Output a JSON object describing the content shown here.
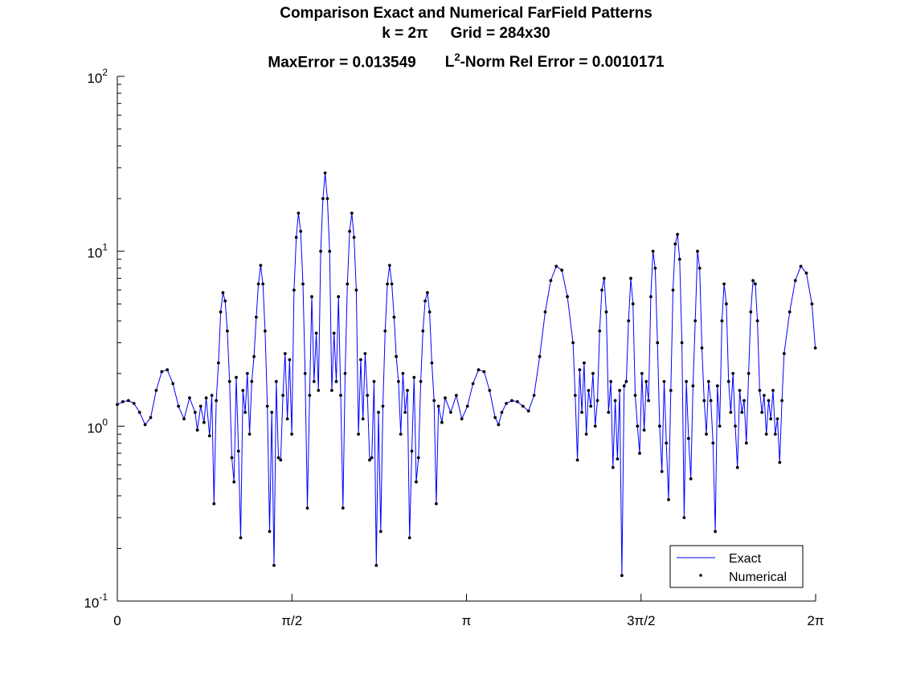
{
  "chart_data": {
    "type": "line",
    "title": "Comparison Exact and Numerical FarField Patterns",
    "subtitle_k": "k = 2π",
    "subtitle_grid": "Grid = 284x30",
    "maxerror_text": "MaxError = 0.013549",
    "l2_prefix": "L",
    "l2_sup": "2",
    "l2_suffix": "-Norm Rel Error = 0.0010171",
    "xlabel": "",
    "ylabel": "",
    "xlim": [
      0,
      6.2832
    ],
    "ylim": [
      0.1,
      100
    ],
    "yscale": "log",
    "grid": false,
    "legend_position": "bottom-right",
    "x_ticks": [
      {
        "value": 0,
        "label": "0"
      },
      {
        "value": 1.5708,
        "label": "π/2"
      },
      {
        "value": 3.1416,
        "label": "π"
      },
      {
        "value": 4.7124,
        "label": "3π/2"
      },
      {
        "value": 6.2832,
        "label": "2π"
      }
    ],
    "y_ticks": [
      {
        "value": 0.1,
        "base": "10",
        "exp": "-1"
      },
      {
        "value": 1,
        "base": "10",
        "exp": "0"
      },
      {
        "value": 10,
        "base": "10",
        "exp": "1"
      },
      {
        "value": 100,
        "base": "10",
        "exp": "2"
      }
    ],
    "series": [
      {
        "name": "Exact",
        "style": "line",
        "color": "#0000ff"
      },
      {
        "name": "Numerical",
        "style": "dots",
        "color": "#000000"
      }
    ],
    "points": [
      [
        0.0,
        1.33
      ],
      [
        0.05,
        1.38
      ],
      [
        0.1,
        1.4
      ],
      [
        0.15,
        1.35
      ],
      [
        0.2,
        1.2
      ],
      [
        0.25,
        1.02
      ],
      [
        0.3,
        1.12
      ],
      [
        0.35,
        1.6
      ],
      [
        0.4,
        2.05
      ],
      [
        0.45,
        2.1
      ],
      [
        0.5,
        1.75
      ],
      [
        0.55,
        1.3
      ],
      [
        0.6,
        1.1
      ],
      [
        0.65,
        1.45
      ],
      [
        0.7,
        1.2
      ],
      [
        0.72,
        0.95
      ],
      [
        0.75,
        1.3
      ],
      [
        0.78,
        1.05
      ],
      [
        0.8,
        1.45
      ],
      [
        0.83,
        0.88
      ],
      [
        0.85,
        1.5
      ],
      [
        0.87,
        0.36
      ],
      [
        0.89,
        1.4
      ],
      [
        0.91,
        2.3
      ],
      [
        0.93,
        4.5
      ],
      [
        0.95,
        5.8
      ],
      [
        0.97,
        5.2
      ],
      [
        0.99,
        3.5
      ],
      [
        1.01,
        1.8
      ],
      [
        1.03,
        0.66
      ],
      [
        1.05,
        0.48
      ],
      [
        1.07,
        1.9
      ],
      [
        1.09,
        0.72
      ],
      [
        1.11,
        0.23
      ],
      [
        1.13,
        1.6
      ],
      [
        1.15,
        1.2
      ],
      [
        1.17,
        2.0
      ],
      [
        1.19,
        0.9
      ],
      [
        1.21,
        1.8
      ],
      [
        1.23,
        2.5
      ],
      [
        1.25,
        4.2
      ],
      [
        1.27,
        6.5
      ],
      [
        1.29,
        8.3
      ],
      [
        1.31,
        6.5
      ],
      [
        1.33,
        3.5
      ],
      [
        1.35,
        1.3
      ],
      [
        1.37,
        0.25
      ],
      [
        1.39,
        1.2
      ],
      [
        1.41,
        0.16
      ],
      [
        1.43,
        1.8
      ],
      [
        1.45,
        0.66
      ],
      [
        1.47,
        0.64
      ],
      [
        1.49,
        1.5
      ],
      [
        1.51,
        2.6
      ],
      [
        1.53,
        1.1
      ],
      [
        1.55,
        2.4
      ],
      [
        1.57,
        0.9
      ],
      [
        1.59,
        6.0
      ],
      [
        1.61,
        12.0
      ],
      [
        1.63,
        16.5
      ],
      [
        1.65,
        13.0
      ],
      [
        1.67,
        6.5
      ],
      [
        1.69,
        2.0
      ],
      [
        1.71,
        0.34
      ],
      [
        1.73,
        1.5
      ],
      [
        1.75,
        5.5
      ],
      [
        1.77,
        1.8
      ],
      [
        1.79,
        3.4
      ],
      [
        1.81,
        1.6
      ],
      [
        1.83,
        10.0
      ],
      [
        1.85,
        20.0
      ],
      [
        1.87,
        28.0
      ],
      [
        1.89,
        20.0
      ],
      [
        1.91,
        10.0
      ],
      [
        1.93,
        1.6
      ],
      [
        1.95,
        3.4
      ],
      [
        1.97,
        1.8
      ],
      [
        1.99,
        5.5
      ],
      [
        2.01,
        1.5
      ],
      [
        2.03,
        0.34
      ],
      [
        2.05,
        2.0
      ],
      [
        2.07,
        6.5
      ],
      [
        2.09,
        13.0
      ],
      [
        2.11,
        16.5
      ],
      [
        2.13,
        12.0
      ],
      [
        2.15,
        6.0
      ],
      [
        2.17,
        0.9
      ],
      [
        2.19,
        2.4
      ],
      [
        2.21,
        1.1
      ],
      [
        2.23,
        2.6
      ],
      [
        2.25,
        1.5
      ],
      [
        2.27,
        0.64
      ],
      [
        2.29,
        0.66
      ],
      [
        2.31,
        1.8
      ],
      [
        2.33,
        0.16
      ],
      [
        2.35,
        1.2
      ],
      [
        2.37,
        0.25
      ],
      [
        2.39,
        1.3
      ],
      [
        2.41,
        3.5
      ],
      [
        2.43,
        6.5
      ],
      [
        2.45,
        8.3
      ],
      [
        2.47,
        6.5
      ],
      [
        2.49,
        4.2
      ],
      [
        2.51,
        2.5
      ],
      [
        2.53,
        1.8
      ],
      [
        2.55,
        0.9
      ],
      [
        2.57,
        2.0
      ],
      [
        2.59,
        1.2
      ],
      [
        2.61,
        1.6
      ],
      [
        2.63,
        0.23
      ],
      [
        2.65,
        0.72
      ],
      [
        2.67,
        1.9
      ],
      [
        2.69,
        0.48
      ],
      [
        2.71,
        0.66
      ],
      [
        2.73,
        1.8
      ],
      [
        2.75,
        3.5
      ],
      [
        2.77,
        5.2
      ],
      [
        2.79,
        5.8
      ],
      [
        2.81,
        4.5
      ],
      [
        2.83,
        2.3
      ],
      [
        2.85,
        1.4
      ],
      [
        2.87,
        0.36
      ],
      [
        2.89,
        1.3
      ],
      [
        2.92,
        1.05
      ],
      [
        2.95,
        1.45
      ],
      [
        3.0,
        1.2
      ],
      [
        3.05,
        1.5
      ],
      [
        3.1,
        1.1
      ],
      [
        3.15,
        1.3
      ],
      [
        3.2,
        1.75
      ],
      [
        3.25,
        2.1
      ],
      [
        3.3,
        2.05
      ],
      [
        3.35,
        1.6
      ],
      [
        3.4,
        1.12
      ],
      [
        3.43,
        1.02
      ],
      [
        3.46,
        1.2
      ],
      [
        3.5,
        1.35
      ],
      [
        3.55,
        1.4
      ],
      [
        3.6,
        1.38
      ],
      [
        3.65,
        1.3
      ],
      [
        3.7,
        1.22
      ],
      [
        3.75,
        1.5
      ],
      [
        3.8,
        2.5
      ],
      [
        3.85,
        4.5
      ],
      [
        3.9,
        6.8
      ],
      [
        3.95,
        8.2
      ],
      [
        4.0,
        7.8
      ],
      [
        4.05,
        5.5
      ],
      [
        4.1,
        3.0
      ],
      [
        4.12,
        1.5
      ],
      [
        4.14,
        0.64
      ],
      [
        4.16,
        2.1
      ],
      [
        4.18,
        1.2
      ],
      [
        4.2,
        2.3
      ],
      [
        4.22,
        0.9
      ],
      [
        4.24,
        1.6
      ],
      [
        4.26,
        1.3
      ],
      [
        4.28,
        2.0
      ],
      [
        4.3,
        1.0
      ],
      [
        4.32,
        1.4
      ],
      [
        4.34,
        3.5
      ],
      [
        4.36,
        6.0
      ],
      [
        4.38,
        7.0
      ],
      [
        4.4,
        4.5
      ],
      [
        4.42,
        1.2
      ],
      [
        4.44,
        1.8
      ],
      [
        4.46,
        0.58
      ],
      [
        4.48,
        1.4
      ],
      [
        4.5,
        0.65
      ],
      [
        4.52,
        1.6
      ],
      [
        4.54,
        0.14
      ],
      [
        4.56,
        1.7
      ],
      [
        4.58,
        1.8
      ],
      [
        4.6,
        4.0
      ],
      [
        4.62,
        7.0
      ],
      [
        4.64,
        5.0
      ],
      [
        4.66,
        1.5
      ],
      [
        4.68,
        1.0
      ],
      [
        4.7,
        0.7
      ],
      [
        4.72,
        2.0
      ],
      [
        4.74,
        0.95
      ],
      [
        4.76,
        1.8
      ],
      [
        4.78,
        1.4
      ],
      [
        4.8,
        5.5
      ],
      [
        4.82,
        10.0
      ],
      [
        4.84,
        8.0
      ],
      [
        4.86,
        3.0
      ],
      [
        4.88,
        1.0
      ],
      [
        4.9,
        0.55
      ],
      [
        4.92,
        1.8
      ],
      [
        4.94,
        0.8
      ],
      [
        4.96,
        0.38
      ],
      [
        4.98,
        1.6
      ],
      [
        5.0,
        6.0
      ],
      [
        5.02,
        11.0
      ],
      [
        5.04,
        12.5
      ],
      [
        5.06,
        9.0
      ],
      [
        5.08,
        3.0
      ],
      [
        5.1,
        0.3
      ],
      [
        5.12,
        1.8
      ],
      [
        5.14,
        0.85
      ],
      [
        5.16,
        0.5
      ],
      [
        5.18,
        1.7
      ],
      [
        5.2,
        4.0
      ],
      [
        5.22,
        10.0
      ],
      [
        5.24,
        8.0
      ],
      [
        5.26,
        2.8
      ],
      [
        5.28,
        1.4
      ],
      [
        5.3,
        0.9
      ],
      [
        5.32,
        1.8
      ],
      [
        5.34,
        1.4
      ],
      [
        5.36,
        0.8
      ],
      [
        5.38,
        0.25
      ],
      [
        5.4,
        1.7
      ],
      [
        5.42,
        1.0
      ],
      [
        5.44,
        4.0
      ],
      [
        5.46,
        6.5
      ],
      [
        5.48,
        5.0
      ],
      [
        5.5,
        1.8
      ],
      [
        5.52,
        1.2
      ],
      [
        5.54,
        2.0
      ],
      [
        5.56,
        1.0
      ],
      [
        5.58,
        0.58
      ],
      [
        5.6,
        1.6
      ],
      [
        5.62,
        1.2
      ],
      [
        5.64,
        1.4
      ],
      [
        5.66,
        0.8
      ],
      [
        5.68,
        2.0
      ],
      [
        5.7,
        4.5
      ],
      [
        5.72,
        6.8
      ],
      [
        5.74,
        6.5
      ],
      [
        5.76,
        4.0
      ],
      [
        5.78,
        1.6
      ],
      [
        5.8,
        1.2
      ],
      [
        5.82,
        1.5
      ],
      [
        5.84,
        0.9
      ],
      [
        5.86,
        1.4
      ],
      [
        5.88,
        1.1
      ],
      [
        5.9,
        1.6
      ],
      [
        5.92,
        0.9
      ],
      [
        5.94,
        1.1
      ],
      [
        5.96,
        0.62
      ],
      [
        5.98,
        1.4
      ],
      [
        6.0,
        2.6
      ],
      [
        6.05,
        4.5
      ],
      [
        6.1,
        6.8
      ],
      [
        6.15,
        8.2
      ],
      [
        6.2,
        7.5
      ],
      [
        6.25,
        5.0
      ],
      [
        6.28,
        2.8
      ]
    ]
  },
  "legend": {
    "exact_label": "Exact",
    "numerical_label": "Numerical"
  }
}
